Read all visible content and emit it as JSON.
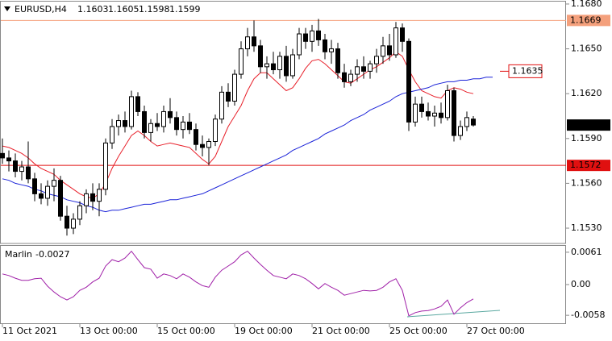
{
  "chart_data": [
    {
      "type": "candlestick",
      "title": "EURUSD,H4",
      "categories": [
        "11 Oct 2021",
        null,
        null,
        null,
        null,
        null,
        null,
        null,
        null,
        null,
        null,
        null,
        "13 Oct 00:00",
        null,
        null,
        null,
        null,
        null,
        null,
        null,
        null,
        null,
        null,
        null,
        "15 Oct 00:00",
        null,
        null,
        null,
        null,
        null,
        null,
        null,
        null,
        null,
        null,
        null,
        "19 Oct 00:00",
        null,
        null,
        null,
        null,
        null,
        null,
        null,
        null,
        null,
        null,
        null,
        "21 Oct 00:00",
        null,
        null,
        null,
        null,
        null,
        null,
        null,
        null,
        null,
        null,
        null,
        "25 Oct 00:00",
        null,
        null,
        null,
        null,
        null,
        null,
        null,
        null,
        null,
        null,
        null,
        "27 Oct 00:00",
        null,
        null,
        null,
        null
      ],
      "open": [
        1.158,
        1.1577,
        1.1575,
        1.1568,
        1.1571,
        1.1563,
        1.1553,
        1.155,
        1.1558,
        1.1562,
        1.1538,
        1.153,
        1.1536,
        1.1545,
        1.1553,
        1.1548,
        1.1556,
        1.1587,
        1.1598,
        1.1602,
        1.1598,
        1.1618,
        1.1608,
        1.1594,
        1.16,
        1.1598,
        1.1608,
        1.1604,
        1.1596,
        1.1601,
        1.1596,
        1.1586,
        1.1584,
        1.1588,
        1.1603,
        1.1621,
        1.1615,
        1.1633,
        1.165,
        1.1658,
        1.1652,
        1.1638,
        1.164,
        1.1636,
        1.1645,
        1.1632,
        1.1646,
        1.166,
        1.1655,
        1.1662,
        1.1656,
        1.1648,
        1.165,
        1.1634,
        1.1628,
        1.1633,
        1.1638,
        1.1635,
        1.164,
        1.1645,
        1.1652,
        1.1646,
        1.1664,
        1.1655,
        1.1601,
        1.1613,
        1.1608,
        1.1605,
        1.1607,
        1.1604,
        1.1622,
        1.1592,
        1.1598,
        1.1603,
        null,
        null,
        null
      ],
      "high": [
        1.159,
        1.1582,
        1.158,
        1.1575,
        1.1588,
        1.1567,
        1.156,
        1.1562,
        1.157,
        1.1565,
        1.1545,
        1.154,
        1.1548,
        1.1556,
        1.156,
        1.156,
        1.159,
        1.1603,
        1.1606,
        1.1608,
        1.1622,
        1.1621,
        1.1612,
        1.1603,
        1.1607,
        1.1612,
        1.1617,
        1.1608,
        1.1605,
        1.1607,
        1.16,
        1.1592,
        1.159,
        1.1606,
        1.1625,
        1.1627,
        1.1636,
        1.1655,
        1.1664,
        1.1669,
        1.1656,
        1.1645,
        1.1648,
        1.1648,
        1.1652,
        1.165,
        1.1664,
        1.1664,
        1.1666,
        1.167,
        1.166,
        1.1656,
        1.1654,
        1.164,
        1.1636,
        1.1643,
        1.1645,
        1.1642,
        1.165,
        1.1658,
        1.166,
        1.1668,
        1.1667,
        1.1657,
        1.1618,
        1.1618,
        1.1614,
        1.1612,
        1.1614,
        1.1626,
        1.1624,
        1.1602,
        1.1608,
        1.1605,
        null,
        null,
        null
      ],
      "low": [
        1.1573,
        1.1568,
        1.1564,
        1.1562,
        1.156,
        1.1548,
        1.1546,
        1.1545,
        1.1548,
        1.1535,
        1.1525,
        1.1526,
        1.1532,
        1.154,
        1.1542,
        1.1538,
        1.1552,
        1.1583,
        1.1592,
        1.1594,
        1.1596,
        1.1605,
        1.159,
        1.1588,
        1.1595,
        1.1594,
        1.16,
        1.1592,
        1.159,
        1.1593,
        1.1582,
        1.1578,
        1.1572,
        1.1585,
        1.16,
        1.1611,
        1.1612,
        1.163,
        1.1645,
        1.1648,
        1.1634,
        1.163,
        1.1633,
        1.163,
        1.1628,
        1.163,
        1.1643,
        1.165,
        1.1648,
        1.1652,
        1.1643,
        1.164,
        1.163,
        1.1624,
        1.1625,
        1.1628,
        1.163,
        1.163,
        1.1634,
        1.164,
        1.1642,
        1.1644,
        1.1648,
        1.1595,
        1.1598,
        1.1604,
        1.1602,
        1.1598,
        1.16,
        1.1602,
        1.1588,
        1.1589,
        1.1595,
        1.1598,
        null,
        null,
        null
      ],
      "close": [
        1.1577,
        1.1575,
        1.1568,
        1.1571,
        1.1563,
        1.1553,
        1.155,
        1.1558,
        1.1562,
        1.1538,
        1.153,
        1.1536,
        1.1545,
        1.1553,
        1.1548,
        1.1556,
        1.1587,
        1.1598,
        1.1602,
        1.1598,
        1.1618,
        1.1608,
        1.1594,
        1.16,
        1.1598,
        1.1608,
        1.1604,
        1.1596,
        1.1601,
        1.1596,
        1.1586,
        1.1584,
        1.1588,
        1.1603,
        1.1621,
        1.1615,
        1.1633,
        1.165,
        1.1658,
        1.1652,
        1.1638,
        1.164,
        1.1636,
        1.1645,
        1.1632,
        1.1646,
        1.166,
        1.1655,
        1.1662,
        1.1656,
        1.1648,
        1.165,
        1.1634,
        1.1628,
        1.1633,
        1.1638,
        1.1635,
        1.164,
        1.1645,
        1.1652,
        1.1646,
        1.1664,
        1.1655,
        1.1601,
        1.1613,
        1.1608,
        1.1605,
        1.1607,
        1.1604,
        1.1622,
        1.1592,
        1.1598,
        1.1604,
        1.1599,
        null,
        null,
        null
      ],
      "overlays": [
        {
          "color": "#e8202a",
          "values": [
            1.1585,
            1.1584,
            1.1582,
            1.158,
            1.1577,
            1.1573,
            1.157,
            1.1568,
            1.1566,
            1.1562,
            1.1559,
            1.1556,
            1.1553,
            1.1551,
            1.155,
            1.1553,
            1.156,
            1.157,
            1.1578,
            1.1585,
            1.1592,
            1.1595,
            1.1592,
            1.1588,
            1.1585,
            1.1586,
            1.1587,
            1.1586,
            1.1585,
            1.1584,
            1.158,
            1.1576,
            1.1573,
            1.1578,
            1.1588,
            1.1598,
            1.1605,
            1.1612,
            1.1622,
            1.163,
            1.1634,
            1.1634,
            1.163,
            1.1626,
            1.1622,
            1.1624,
            1.163,
            1.1637,
            1.1642,
            1.1643,
            1.164,
            1.1636,
            1.1632,
            1.1628,
            1.1627,
            1.163,
            1.1633,
            1.1636,
            1.1638,
            1.1641,
            1.1644,
            1.1648,
            1.1645,
            1.1636,
            1.1628,
            1.1622,
            1.162,
            1.1618,
            1.1617,
            1.1622,
            1.1624,
            1.1623,
            1.1621,
            1.162,
            null,
            null,
            null
          ]
        },
        {
          "color": "#1a22d8",
          "values": [
            1.1563,
            1.1562,
            1.156,
            1.1559,
            1.1558,
            1.1556,
            1.1555,
            1.1553,
            1.1552,
            1.1551,
            1.1549,
            1.1548,
            1.1547,
            1.1545,
            1.1544,
            1.1542,
            1.1541,
            1.1542,
            1.1542,
            1.1543,
            1.1544,
            1.1545,
            1.1546,
            1.1546,
            1.1547,
            1.1548,
            1.1549,
            1.1549,
            1.155,
            1.1551,
            1.1552,
            1.1553,
            1.1555,
            1.1557,
            1.1559,
            1.1561,
            1.1563,
            1.1565,
            1.1567,
            1.1569,
            1.1571,
            1.1573,
            1.1575,
            1.1577,
            1.1579,
            1.1582,
            1.1584,
            1.1586,
            1.1588,
            1.159,
            1.1593,
            1.1595,
            1.1597,
            1.1599,
            1.1602,
            1.1604,
            1.1606,
            1.1609,
            1.1611,
            1.1613,
            1.1615,
            1.1618,
            1.162,
            1.1621,
            1.1622,
            1.1623,
            1.1624,
            1.1626,
            1.1627,
            1.1628,
            1.1628,
            1.1629,
            1.1629,
            1.163,
            1.163,
            1.1631,
            1.1631
          ]
        }
      ],
      "levels": [
        {
          "value": 1.1669,
          "color": "#f4a07c"
        },
        {
          "value": 1.1572,
          "color": "#e01010"
        }
      ],
      "callout": {
        "value": 1.1635,
        "color": "#e01010"
      },
      "ylim": [
        1.15203,
        1.16816
      ],
      "yticks": [
        {
          "value": 1.168,
          "label": "1.1680"
        },
        {
          "value": 1.165,
          "label": "1.1650"
        },
        {
          "value": 1.162,
          "label": "1.1620"
        },
        {
          "value": 1.159,
          "label": "1.1590"
        },
        {
          "value": 1.156,
          "label": "1.1560"
        },
        {
          "value": 1.153,
          "label": "1.1530"
        }
      ]
    },
    {
      "type": "line",
      "title": "Marlin",
      "color": "#a020a8",
      "values": [
        0.002,
        0.0017,
        0.0012,
        0.0008,
        0.0008,
        0.0011,
        0.0012,
        -0.0003,
        -0.0014,
        -0.0023,
        -0.0029,
        -0.0023,
        -0.0011,
        -0.0005,
        0.0005,
        0.0012,
        0.0035,
        0.0047,
        0.0043,
        0.005,
        0.0063,
        0.0047,
        0.0032,
        0.0029,
        0.0012,
        0.002,
        0.0017,
        0.0011,
        0.002,
        0.0014,
        0.0005,
        -0.0002,
        -0.0005,
        0.0014,
        0.0027,
        0.0035,
        0.0043,
        0.0056,
        0.0063,
        0.005,
        0.0038,
        0.0027,
        0.0017,
        0.0014,
        0.0011,
        0.002,
        0.0017,
        0.0011,
        0.0002,
        -0.0008,
        0.0002,
        -0.0005,
        -0.0011,
        -0.002,
        -0.0017,
        -0.0014,
        -0.0011,
        -0.0012,
        -0.0011,
        -0.0005,
        0.0005,
        0.0011,
        -0.0011,
        -0.0059,
        -0.0053,
        -0.005,
        -0.0049,
        -0.0046,
        -0.0041,
        -0.0029,
        -0.0056,
        -0.0044,
        -0.0034,
        -0.0027,
        null,
        null,
        null
      ],
      "ylim": [
        -0.0073,
        0.0073
      ],
      "yticks": [
        0.0061,
        {
          "value": 0,
          "label": "0.00"
        },
        -0.0058
      ]
    }
  ]
}
